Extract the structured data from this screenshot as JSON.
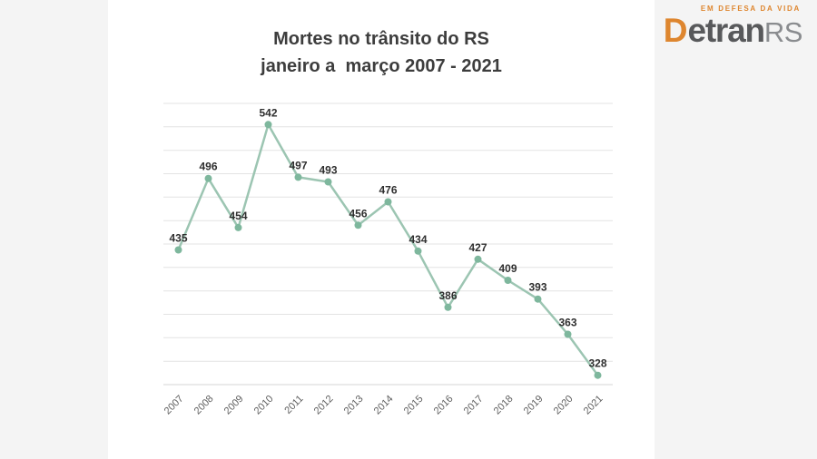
{
  "logo": {
    "tagline": "EM DEFESA DA VIDA",
    "word_d": "D",
    "word_etran": "etran",
    "word_rs": "RS",
    "orange": "#de862f",
    "dark_gray": "#58595b",
    "light_gray": "#8a8c8f"
  },
  "page": {
    "background": "#ffffff",
    "side_panel_color": "#f4f4f4"
  },
  "chart_data": {
    "type": "line",
    "title": "Mortes no trânsito do RS",
    "subtitle": "janeiro a  março 2007 - 2021",
    "categories": [
      "2007",
      "2008",
      "2009",
      "2010",
      "2011",
      "2012",
      "2013",
      "2014",
      "2015",
      "2016",
      "2017",
      "2018",
      "2019",
      "2020",
      "2021"
    ],
    "series": [
      {
        "name": "Mortes",
        "values": [
          435,
          496,
          454,
          542,
          497,
          493,
          456,
          476,
          434,
          386,
          427,
          409,
          393,
          363,
          328
        ]
      }
    ],
    "ylim": [
      320,
      560
    ],
    "grid_step": 20,
    "grid": true,
    "y_tick_labels_visible": false,
    "legend_position": "none",
    "line_color": "#9cc5b2",
    "point_color": "#7eb79d",
    "value_label_color": "#2f2f2f",
    "axis_label_color": "#5f5f5f",
    "gridline_color": "#e3e3e3",
    "axis_line_color": "#d6d6d6"
  }
}
